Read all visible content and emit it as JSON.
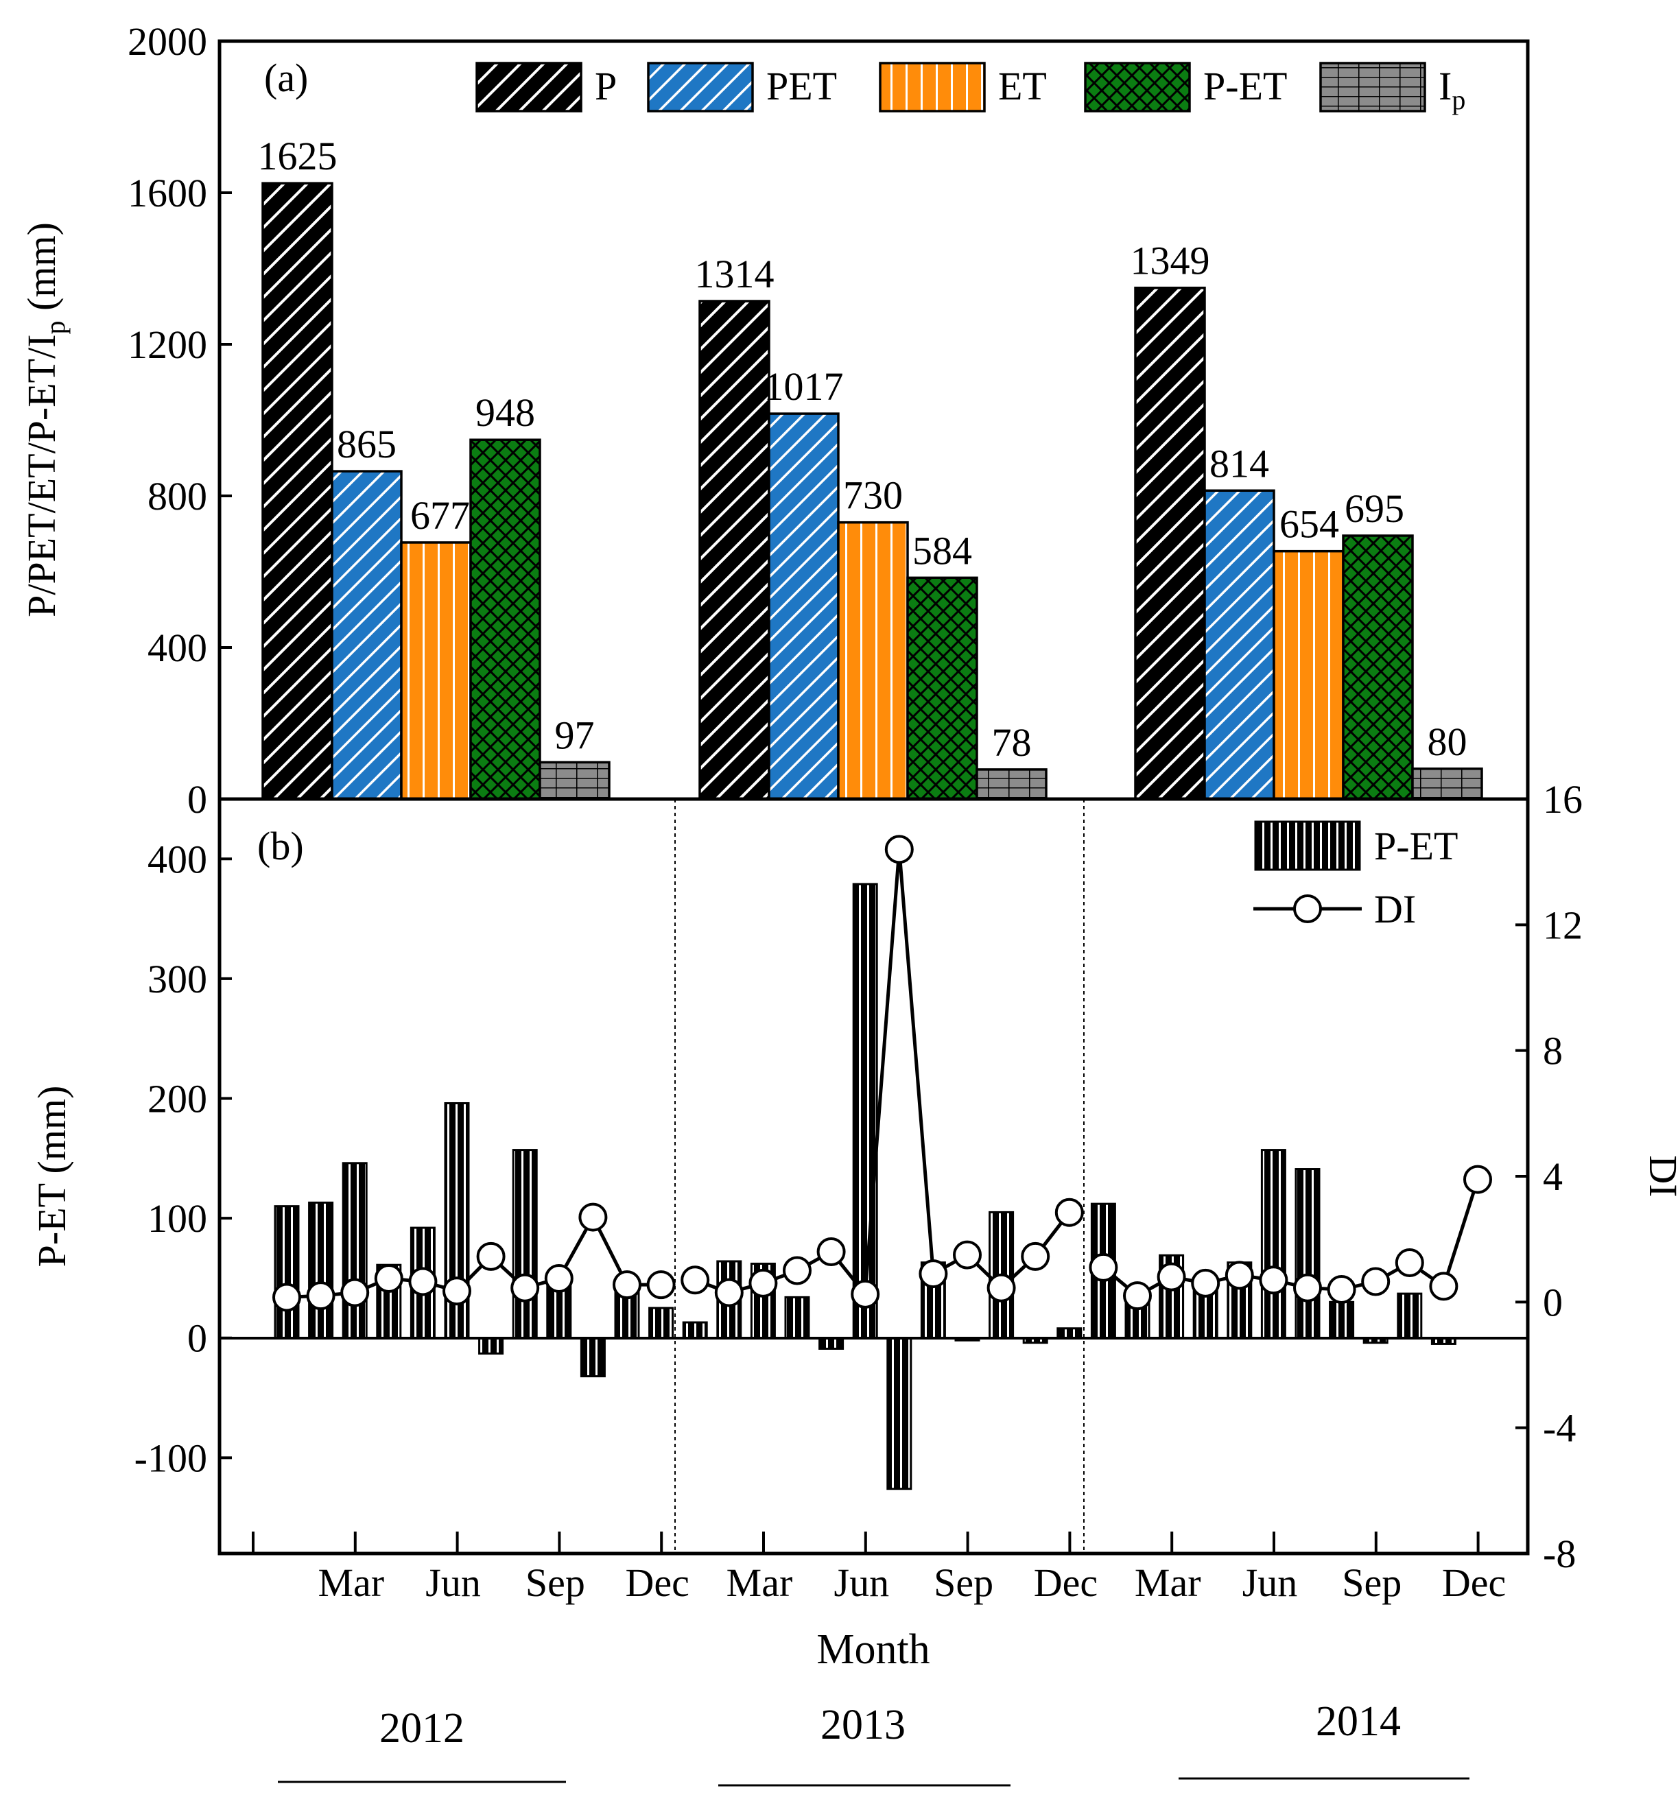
{
  "chart_data": [
    {
      "type": "bar",
      "panel_label": "(a)",
      "ylabel": "P/PET/ET/P-ET/I",
      "ylabel_sub": "p",
      "ylabel_unit": " (mm)",
      "ylim": [
        0,
        2000
      ],
      "yticks": [
        "0",
        "400",
        "800",
        "1200",
        "1600",
        "2000"
      ],
      "categories": [
        "2012",
        "2013",
        "2014"
      ],
      "series": [
        {
          "name": "P",
          "key": "p",
          "values": [
            1625,
            1314,
            1349
          ],
          "labels": [
            "1625",
            "1314",
            "1349"
          ]
        },
        {
          "name": "PET",
          "key": "pet",
          "values": [
            865,
            1017,
            814
          ],
          "labels": [
            "865",
            "1017",
            "814"
          ]
        },
        {
          "name": "ET",
          "key": "et",
          "values": [
            677,
            730,
            654
          ],
          "labels": [
            "677",
            "730",
            "654"
          ]
        },
        {
          "name": "P-ET",
          "key": "pet2",
          "values": [
            948,
            584,
            695
          ],
          "labels": [
            "948",
            "584",
            "695"
          ]
        },
        {
          "name": "I",
          "name_sub": "p",
          "key": "ip",
          "values": [
            97,
            78,
            80
          ],
          "labels": [
            "97",
            "78",
            "80"
          ]
        }
      ],
      "legend_position": "top-right"
    },
    {
      "type": "bar+line",
      "panel_label": "(b)",
      "xlabel": "Month",
      "ylabel": "P-ET (mm)",
      "y2label": "DI",
      "ylim": [
        -180,
        450
      ],
      "yticks": [
        "-100",
        "0",
        "100",
        "200",
        "300",
        "400"
      ],
      "y2lim": [
        -8,
        16
      ],
      "y2ticks": [
        "-8",
        "-4",
        "0",
        "4",
        "8",
        "12",
        "16"
      ],
      "xtick_labels": [
        "Mar",
        "Jun",
        "Sep",
        "Dec",
        "Mar",
        "Jun",
        "Sep",
        "Dec",
        "Mar",
        "Jun",
        "Sep",
        "Dec"
      ],
      "series": [
        {
          "name": "P-ET",
          "type": "bar",
          "values": [
            110,
            113,
            146,
            61,
            92,
            196,
            -13,
            157,
            45,
            -32,
            40,
            25,
            13,
            64,
            62,
            34,
            -9,
            379,
            -126,
            63,
            -2,
            105,
            -4,
            8,
            112,
            40,
            69,
            41,
            63,
            157,
            141,
            30,
            -4,
            37,
            -5,
            0
          ]
        },
        {
          "name": "DI",
          "type": "line",
          "values": [
            0.15,
            0.2,
            0.3,
            0.75,
            0.65,
            0.35,
            1.45,
            0.45,
            0.75,
            2.7,
            0.55,
            0.55,
            0.7,
            0.3,
            0.6,
            1.0,
            1.6,
            0.25,
            14.4,
            0.9,
            1.5,
            0.45,
            1.45,
            2.85,
            1.1,
            0.2,
            0.8,
            0.6,
            0.85,
            0.7,
            0.45,
            0.4,
            0.65,
            1.25,
            0.5,
            3.9
          ],
          "segments": [
            [
              0,
              9
            ],
            [
              9,
              11
            ],
            [
              12,
              23
            ],
            [
              24,
              32
            ],
            [
              32,
              35
            ]
          ]
        }
      ],
      "year_labels": [
        "2012",
        "2013",
        "2014"
      ],
      "legend_position": "top-right"
    }
  ]
}
